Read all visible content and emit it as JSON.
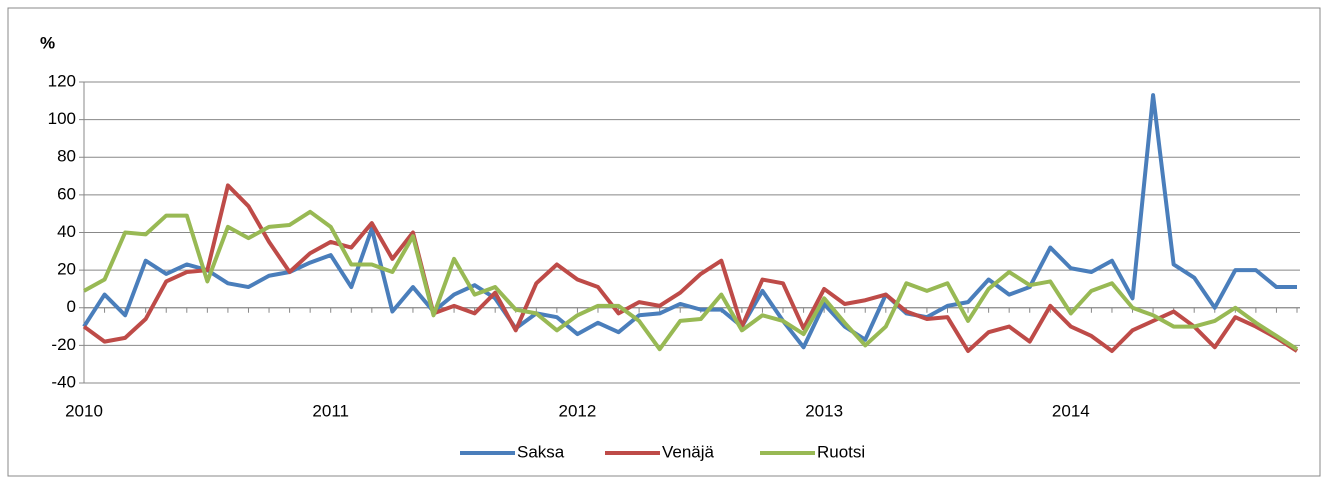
{
  "chart_data": {
    "type": "line",
    "y_label": "%",
    "categories": [
      "2010",
      null,
      null,
      null,
      null,
      null,
      null,
      null,
      null,
      null,
      null,
      null,
      "2011",
      null,
      null,
      null,
      null,
      null,
      null,
      null,
      null,
      null,
      null,
      null,
      "2012",
      null,
      null,
      null,
      null,
      null,
      null,
      null,
      null,
      null,
      null,
      null,
      "2013",
      null,
      null,
      null,
      null,
      null,
      null,
      null,
      null,
      null,
      null,
      null,
      "2014",
      null,
      null,
      null,
      null,
      null,
      null,
      null,
      null,
      null,
      null,
      null
    ],
    "series": [
      {
        "name": "Saksa",
        "color": "#4a7ebb",
        "values": [
          -10,
          7,
          -4,
          25,
          18,
          23,
          20,
          13,
          11,
          17,
          19,
          24,
          28,
          11,
          42,
          -2,
          11,
          -2,
          7,
          12,
          5,
          -11,
          -3,
          -5,
          -14,
          -8,
          -13,
          -4,
          -3,
          2,
          -1,
          -1,
          -10,
          9,
          -7,
          -21,
          2,
          -10,
          -17,
          7,
          -3,
          -5,
          1,
          3,
          15,
          7,
          11,
          32,
          21,
          19,
          25,
          5,
          113,
          23,
          16,
          0,
          20,
          20,
          11,
          11
        ]
      },
      {
        "name": "Venäjä",
        "color": "#be4b48",
        "values": [
          -10,
          -18,
          -16,
          -6,
          14,
          19,
          20,
          65,
          54,
          35,
          19,
          29,
          35,
          32,
          45,
          26,
          40,
          -3,
          1,
          -3,
          8,
          -12,
          13,
          23,
          15,
          11,
          -3,
          3,
          1,
          8,
          18,
          25,
          -10,
          15,
          13,
          -11,
          10,
          2,
          4,
          7,
          -2,
          -6,
          -5,
          -23,
          -13,
          -10,
          -18,
          1,
          -10,
          -15,
          -23,
          -12,
          -7,
          -2,
          -10,
          -21,
          -5,
          -10,
          -16,
          -23
        ]
      },
      {
        "name": "Ruotsi",
        "color": "#98b954",
        "values": [
          9,
          15,
          40,
          39,
          49,
          49,
          14,
          43,
          37,
          43,
          44,
          51,
          43,
          23,
          23,
          19,
          38,
          -4,
          26,
          7,
          11,
          -1,
          -3,
          -12,
          -4,
          1,
          1,
          -7,
          -22,
          -7,
          -6,
          7,
          -12,
          -4,
          -7,
          -14,
          5,
          -8,
          -20,
          -10,
          13,
          9,
          13,
          -7,
          10,
          19,
          12,
          14,
          -3,
          9,
          13,
          0,
          -4,
          -10,
          -10,
          -7,
          0,
          -8,
          -15,
          -22
        ]
      }
    ],
    "ylim": [
      -40,
      120
    ],
    "yticks": [
      -40,
      -20,
      0,
      20,
      40,
      60,
      80,
      100,
      120
    ],
    "grid": true,
    "legend": "bottom"
  }
}
